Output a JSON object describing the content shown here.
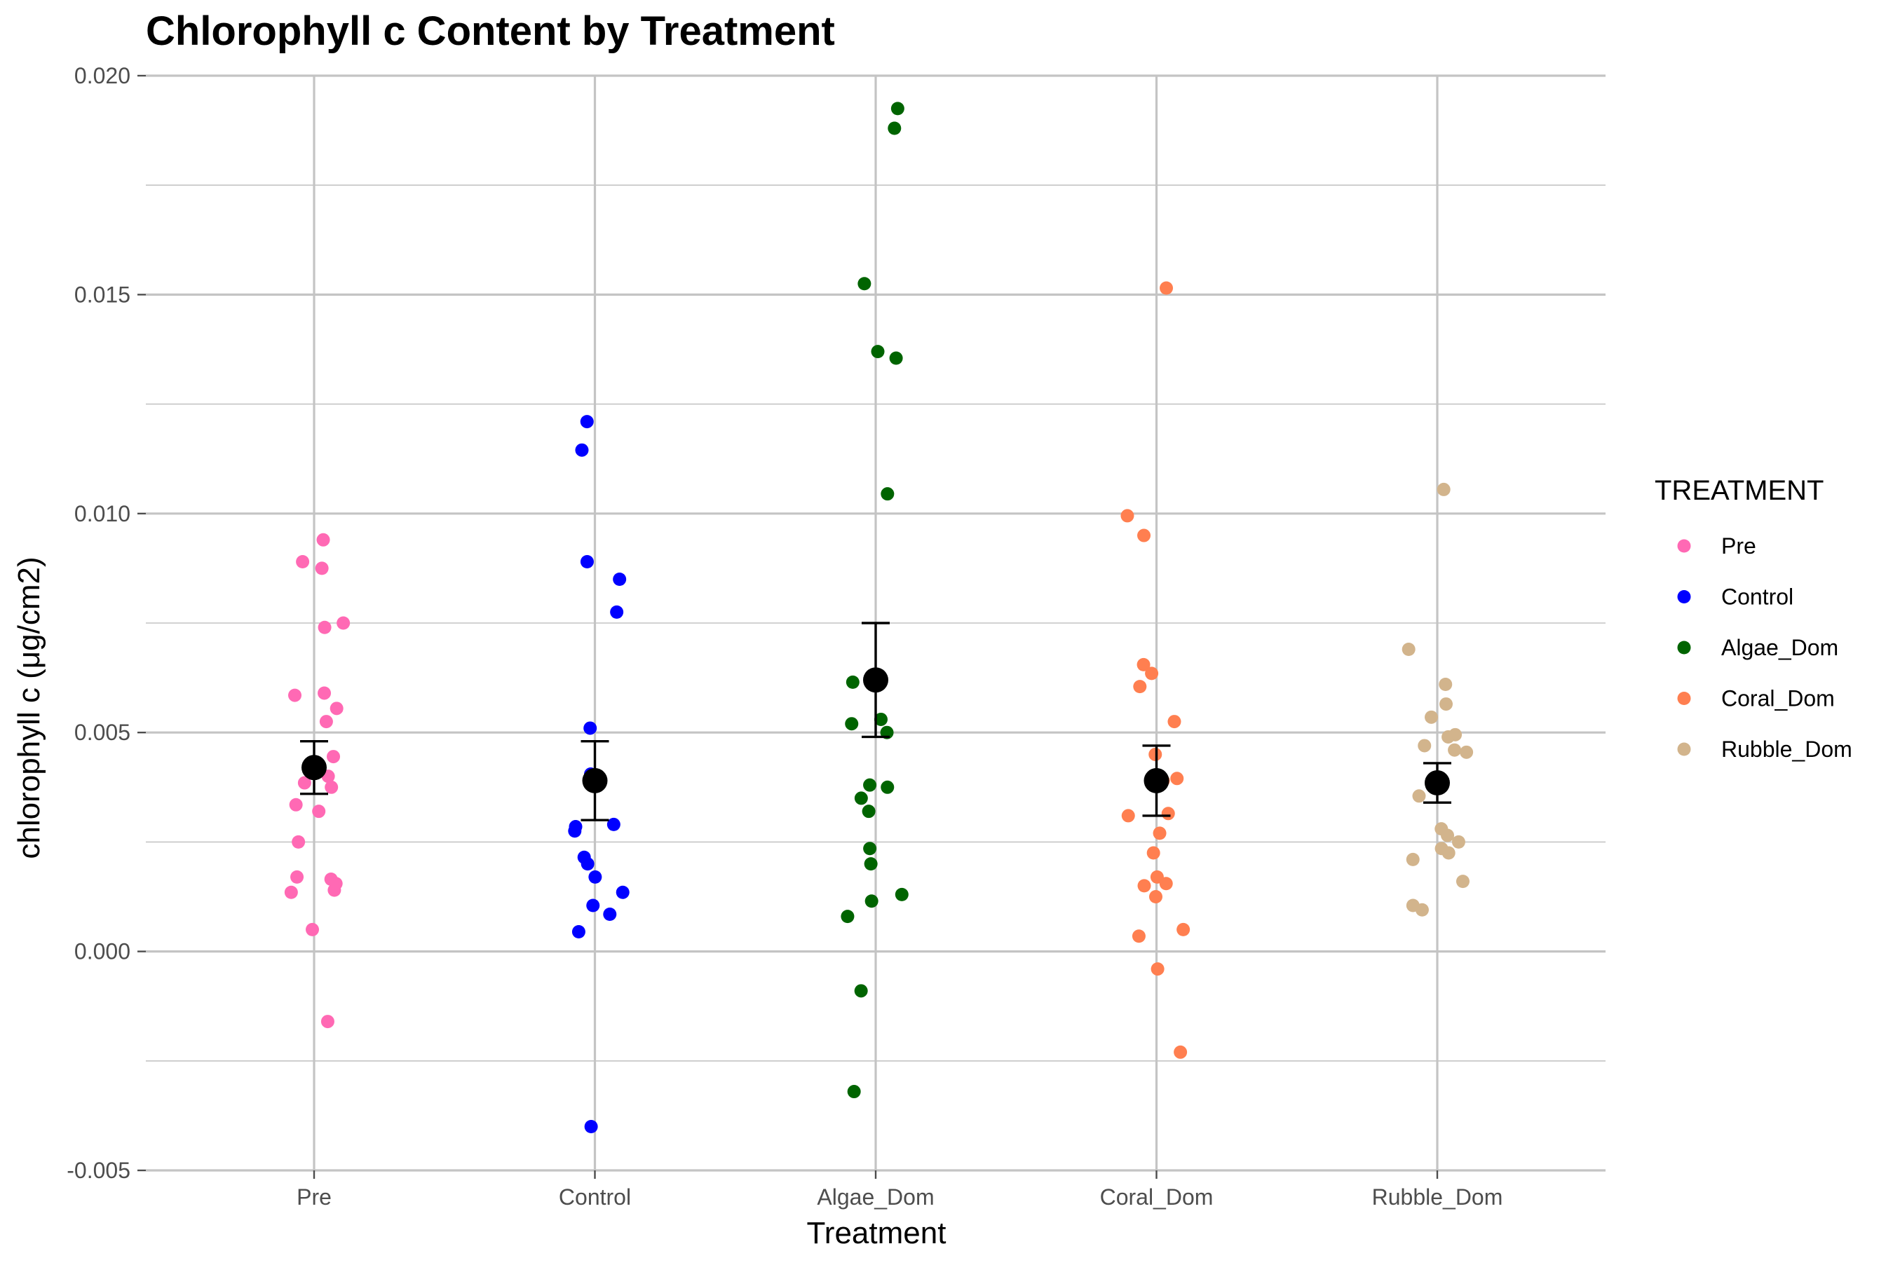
{
  "chart_data": {
    "type": "scatter",
    "title": "Chlorophyll c Content by Treatment",
    "xlabel": "Treatment",
    "ylabel": "chlorophyll c (μg/cm2)",
    "ylim": [
      -0.005,
      0.02
    ],
    "yticks": [
      "-0.005",
      "0.000",
      "0.005",
      "0.010",
      "0.015",
      "0.020"
    ],
    "categories": [
      "Pre",
      "Control",
      "Algae_Dom",
      "Coral_Dom",
      "Rubble_Dom"
    ],
    "grid": true,
    "legend": {
      "title": "TREATMENT",
      "position": "right",
      "entries": [
        "Pre",
        "Control",
        "Algae_Dom",
        "Coral_Dom",
        "Rubble_Dom"
      ]
    },
    "colors": {
      "Pre": "#ff69b4",
      "Control": "#0000ff",
      "Algae_Dom": "#006400",
      "Coral_Dom": "#ff7f50",
      "Rubble_Dom": "#d2b48c",
      "summary": "#000000"
    },
    "series": [
      {
        "name": "Pre",
        "values": [
          0.0094,
          0.0089,
          0.00875,
          0.0075,
          0.0074,
          0.0059,
          0.00585,
          0.00555,
          0.00525,
          0.00445,
          0.004,
          0.00385,
          0.00375,
          0.00335,
          0.0032,
          0.0025,
          0.0017,
          0.00165,
          0.00155,
          0.0014,
          0.00135,
          0.0005,
          -0.0016
        ],
        "mean": 0.0042,
        "ci": [
          0.0036,
          0.0048
        ]
      },
      {
        "name": "Control",
        "values": [
          0.0121,
          0.01145,
          0.0089,
          0.0085,
          0.00775,
          0.0051,
          0.00405,
          0.0029,
          0.00285,
          0.00275,
          0.00215,
          0.002,
          0.0017,
          0.00135,
          0.00105,
          0.00085,
          0.00045,
          -0.004
        ],
        "mean": 0.0039,
        "ci": [
          0.003,
          0.0048
        ]
      },
      {
        "name": "Algae_Dom",
        "values": [
          0.01925,
          0.0188,
          0.01525,
          0.0137,
          0.01355,
          0.01045,
          0.00615,
          0.0053,
          0.0052,
          0.005,
          0.0038,
          0.00375,
          0.0035,
          0.0032,
          0.00235,
          0.002,
          0.0013,
          0.00115,
          0.0008,
          -0.0009,
          -0.0032
        ],
        "mean": 0.0062,
        "ci": [
          0.0049,
          0.0075
        ]
      },
      {
        "name": "Coral_Dom",
        "values": [
          0.01515,
          0.00995,
          0.0095,
          0.00655,
          0.00635,
          0.00605,
          0.00525,
          0.0045,
          0.004,
          0.00395,
          0.0039,
          0.00315,
          0.0031,
          0.0027,
          0.00225,
          0.0017,
          0.00155,
          0.0015,
          0.00125,
          0.0005,
          0.00035,
          -0.0004,
          -0.0023
        ],
        "mean": 0.0039,
        "ci": [
          0.0031,
          0.0047
        ]
      },
      {
        "name": "Rubble_Dom",
        "values": [
          0.01055,
          0.0069,
          0.0061,
          0.00565,
          0.00535,
          0.00495,
          0.0049,
          0.0047,
          0.0046,
          0.00455,
          0.0038,
          0.00355,
          0.0028,
          0.00265,
          0.0025,
          0.00235,
          0.00225,
          0.0021,
          0.0016,
          0.00105,
          0.00095
        ],
        "mean": 0.00385,
        "ci": [
          0.0034,
          0.0043
        ]
      }
    ]
  }
}
